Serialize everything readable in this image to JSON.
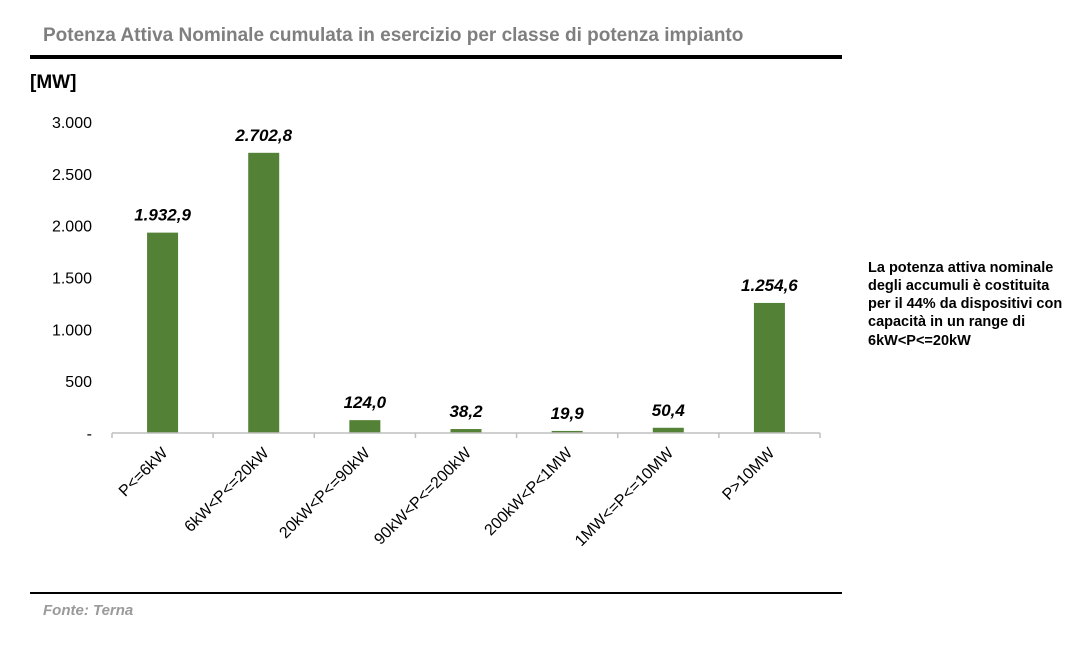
{
  "header": {
    "title": "Potenza Attiva Nominale cumulata in esercizio per classe di potenza impianto"
  },
  "unit_label": "[MW]",
  "note": "La potenza attiva nominale degli accumuli è costituita per il 44% da dispositivi con capacità in un range di 6kW<P<=20kW",
  "source": "Fonte: Terna",
  "chart_data": {
    "type": "bar",
    "title": "Potenza Attiva Nominale cumulata in esercizio per classe di potenza impianto",
    "ylabel": "[MW]",
    "xlabel": "",
    "categories": [
      "P<=6kW",
      "6kW<P<=20kW",
      "20kW<P<=90kW",
      "90kW<P<=200kW",
      "200kW<P<1MW",
      "1MW<=P<=10MW",
      "P>10MW"
    ],
    "values": [
      1932.9,
      2702.8,
      124.0,
      38.2,
      19.9,
      50.4,
      1254.6
    ],
    "data_labels": [
      "1.932,9",
      "2.702,8",
      "124,0",
      "38,2",
      "19,9",
      "50,4",
      "1.254,6"
    ],
    "ylim": [
      0,
      3000
    ],
    "yticks": [
      0,
      500,
      1000,
      1500,
      2000,
      2500,
      3000
    ],
    "ytick_labels": [
      "-",
      "500",
      "1.000",
      "1.500",
      "2.000",
      "2.500",
      "3.000"
    ],
    "grid": false,
    "legend": "none",
    "bar_color": "#538135"
  }
}
